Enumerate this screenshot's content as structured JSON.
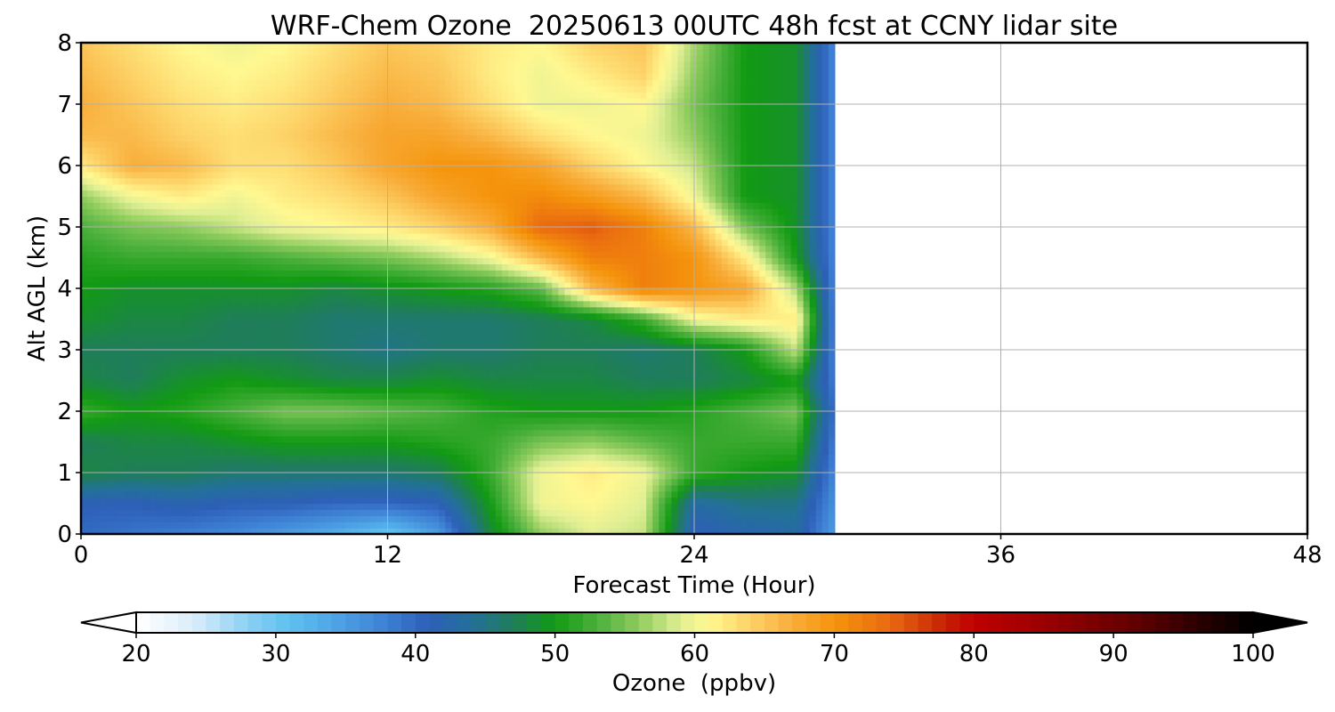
{
  "chart_data": {
    "type": "heatmap",
    "title": "WRF-Chem Ozone  20250613 00UTC 48h fcst at CCNY lidar site",
    "xlabel": "Forecast Time (Hour)",
    "ylabel": "Alt AGL (km)",
    "xlim": [
      0,
      48
    ],
    "ylim": [
      0,
      8
    ],
    "x_ticks": [
      "0",
      "12",
      "24",
      "36",
      "48"
    ],
    "y_ticks": [
      "0",
      "1",
      "2",
      "3",
      "4",
      "5",
      "6",
      "7",
      "8"
    ],
    "grid": true,
    "colorbar": {
      "label": "Ozone  (ppbv)",
      "range": [
        20,
        100
      ],
      "extend": "both",
      "ticks": [
        "20",
        "30",
        "40",
        "50",
        "60",
        "70",
        "80",
        "90",
        "100"
      ]
    },
    "data_end_hour": 29.5,
    "x_hours": [
      0,
      2,
      4,
      6,
      8,
      10,
      12,
      14,
      16,
      18,
      20,
      22,
      24,
      26,
      28,
      29.5
    ],
    "alt_km": [
      0,
      0.5,
      1,
      1.5,
      2,
      2.5,
      3,
      3.5,
      4,
      4.5,
      5,
      5.5,
      6,
      6.5,
      7,
      7.5,
      8
    ],
    "ozone_ppbv": [
      [
        40,
        39,
        38,
        37,
        35,
        33,
        30,
        35,
        48,
        56,
        59,
        58,
        41,
        42,
        43,
        35
      ],
      [
        41,
        41,
        42,
        41,
        41,
        40,
        40,
        41,
        50,
        60,
        61,
        59,
        43,
        45,
        45,
        36
      ],
      [
        48,
        47,
        47,
        46,
        46,
        46,
        46,
        47,
        52,
        60,
        62,
        60,
        52,
        50,
        49,
        37
      ],
      [
        47,
        48,
        48,
        49,
        50,
        50,
        50,
        51,
        52,
        55,
        56,
        54,
        52,
        52,
        52,
        38
      ],
      [
        52,
        50,
        51,
        53,
        55,
        55,
        54,
        53,
        51,
        50,
        50,
        50,
        51,
        53,
        55,
        39
      ],
      [
        48,
        47,
        49,
        50,
        49,
        48,
        48,
        49,
        48,
        48,
        48,
        47,
        47,
        48,
        50,
        38
      ],
      [
        47,
        47,
        47,
        47,
        47,
        46,
        45,
        46,
        46,
        47,
        47,
        46,
        47,
        50,
        58,
        37
      ],
      [
        49,
        48,
        48,
        47,
        47,
        46,
        46,
        46,
        46,
        47,
        48,
        52,
        60,
        62,
        62,
        37
      ],
      [
        50,
        49,
        49,
        49,
        49,
        48,
        49,
        50,
        51,
        54,
        66,
        72,
        70,
        68,
        57,
        37
      ],
      [
        51,
        52,
        52,
        52,
        53,
        54,
        55,
        57,
        60,
        66,
        72,
        72,
        70,
        62,
        50,
        37
      ],
      [
        53,
        55,
        56,
        58,
        60,
        61,
        62,
        64,
        67,
        74,
        75,
        72,
        66,
        55,
        49,
        37
      ],
      [
        56,
        60,
        62,
        60,
        62,
        63,
        65,
        68,
        70,
        71,
        69,
        66,
        60,
        50,
        49,
        37
      ],
      [
        62,
        67,
        66,
        63,
        63,
        65,
        68,
        70,
        70,
        68,
        64,
        61,
        58,
        50,
        49,
        37
      ],
      [
        66,
        66,
        64,
        63,
        64,
        66,
        68,
        68,
        66,
        63,
        61,
        60,
        56,
        50,
        49,
        37
      ],
      [
        67,
        65,
        63,
        62,
        63,
        65,
        67,
        66,
        63,
        60,
        60,
        61,
        55,
        50,
        49,
        37
      ],
      [
        66,
        64,
        62,
        61,
        62,
        64,
        66,
        65,
        62,
        60,
        62,
        64,
        56,
        50,
        49,
        37
      ],
      [
        65,
        63,
        61,
        60,
        61,
        63,
        65,
        64,
        62,
        61,
        64,
        65,
        57,
        50,
        49,
        37
      ]
    ]
  },
  "colors": {
    "scale": [
      [
        20,
        "#ffffff"
      ],
      [
        24,
        "#dceefa"
      ],
      [
        28,
        "#8ad0f4"
      ],
      [
        31,
        "#5ec0ef"
      ],
      [
        34,
        "#4fa6e6"
      ],
      [
        38,
        "#3d7fd3"
      ],
      [
        41,
        "#2d5fb7"
      ],
      [
        44,
        "#23709a"
      ],
      [
        47,
        "#1f7d5a"
      ],
      [
        50,
        "#129a13"
      ],
      [
        53,
        "#4bb03c"
      ],
      [
        56,
        "#8fcc5e"
      ],
      [
        59,
        "#e1ef94"
      ],
      [
        61,
        "#fff891"
      ],
      [
        64,
        "#fdd267"
      ],
      [
        67,
        "#f8ad3a"
      ],
      [
        70,
        "#f5940c"
      ],
      [
        74,
        "#ea6a10"
      ],
      [
        78,
        "#c52005"
      ],
      [
        80,
        "#c00000"
      ],
      [
        86,
        "#930000"
      ],
      [
        92,
        "#5c0000"
      ],
      [
        97,
        "#200000"
      ],
      [
        100,
        "#000000"
      ]
    ]
  }
}
